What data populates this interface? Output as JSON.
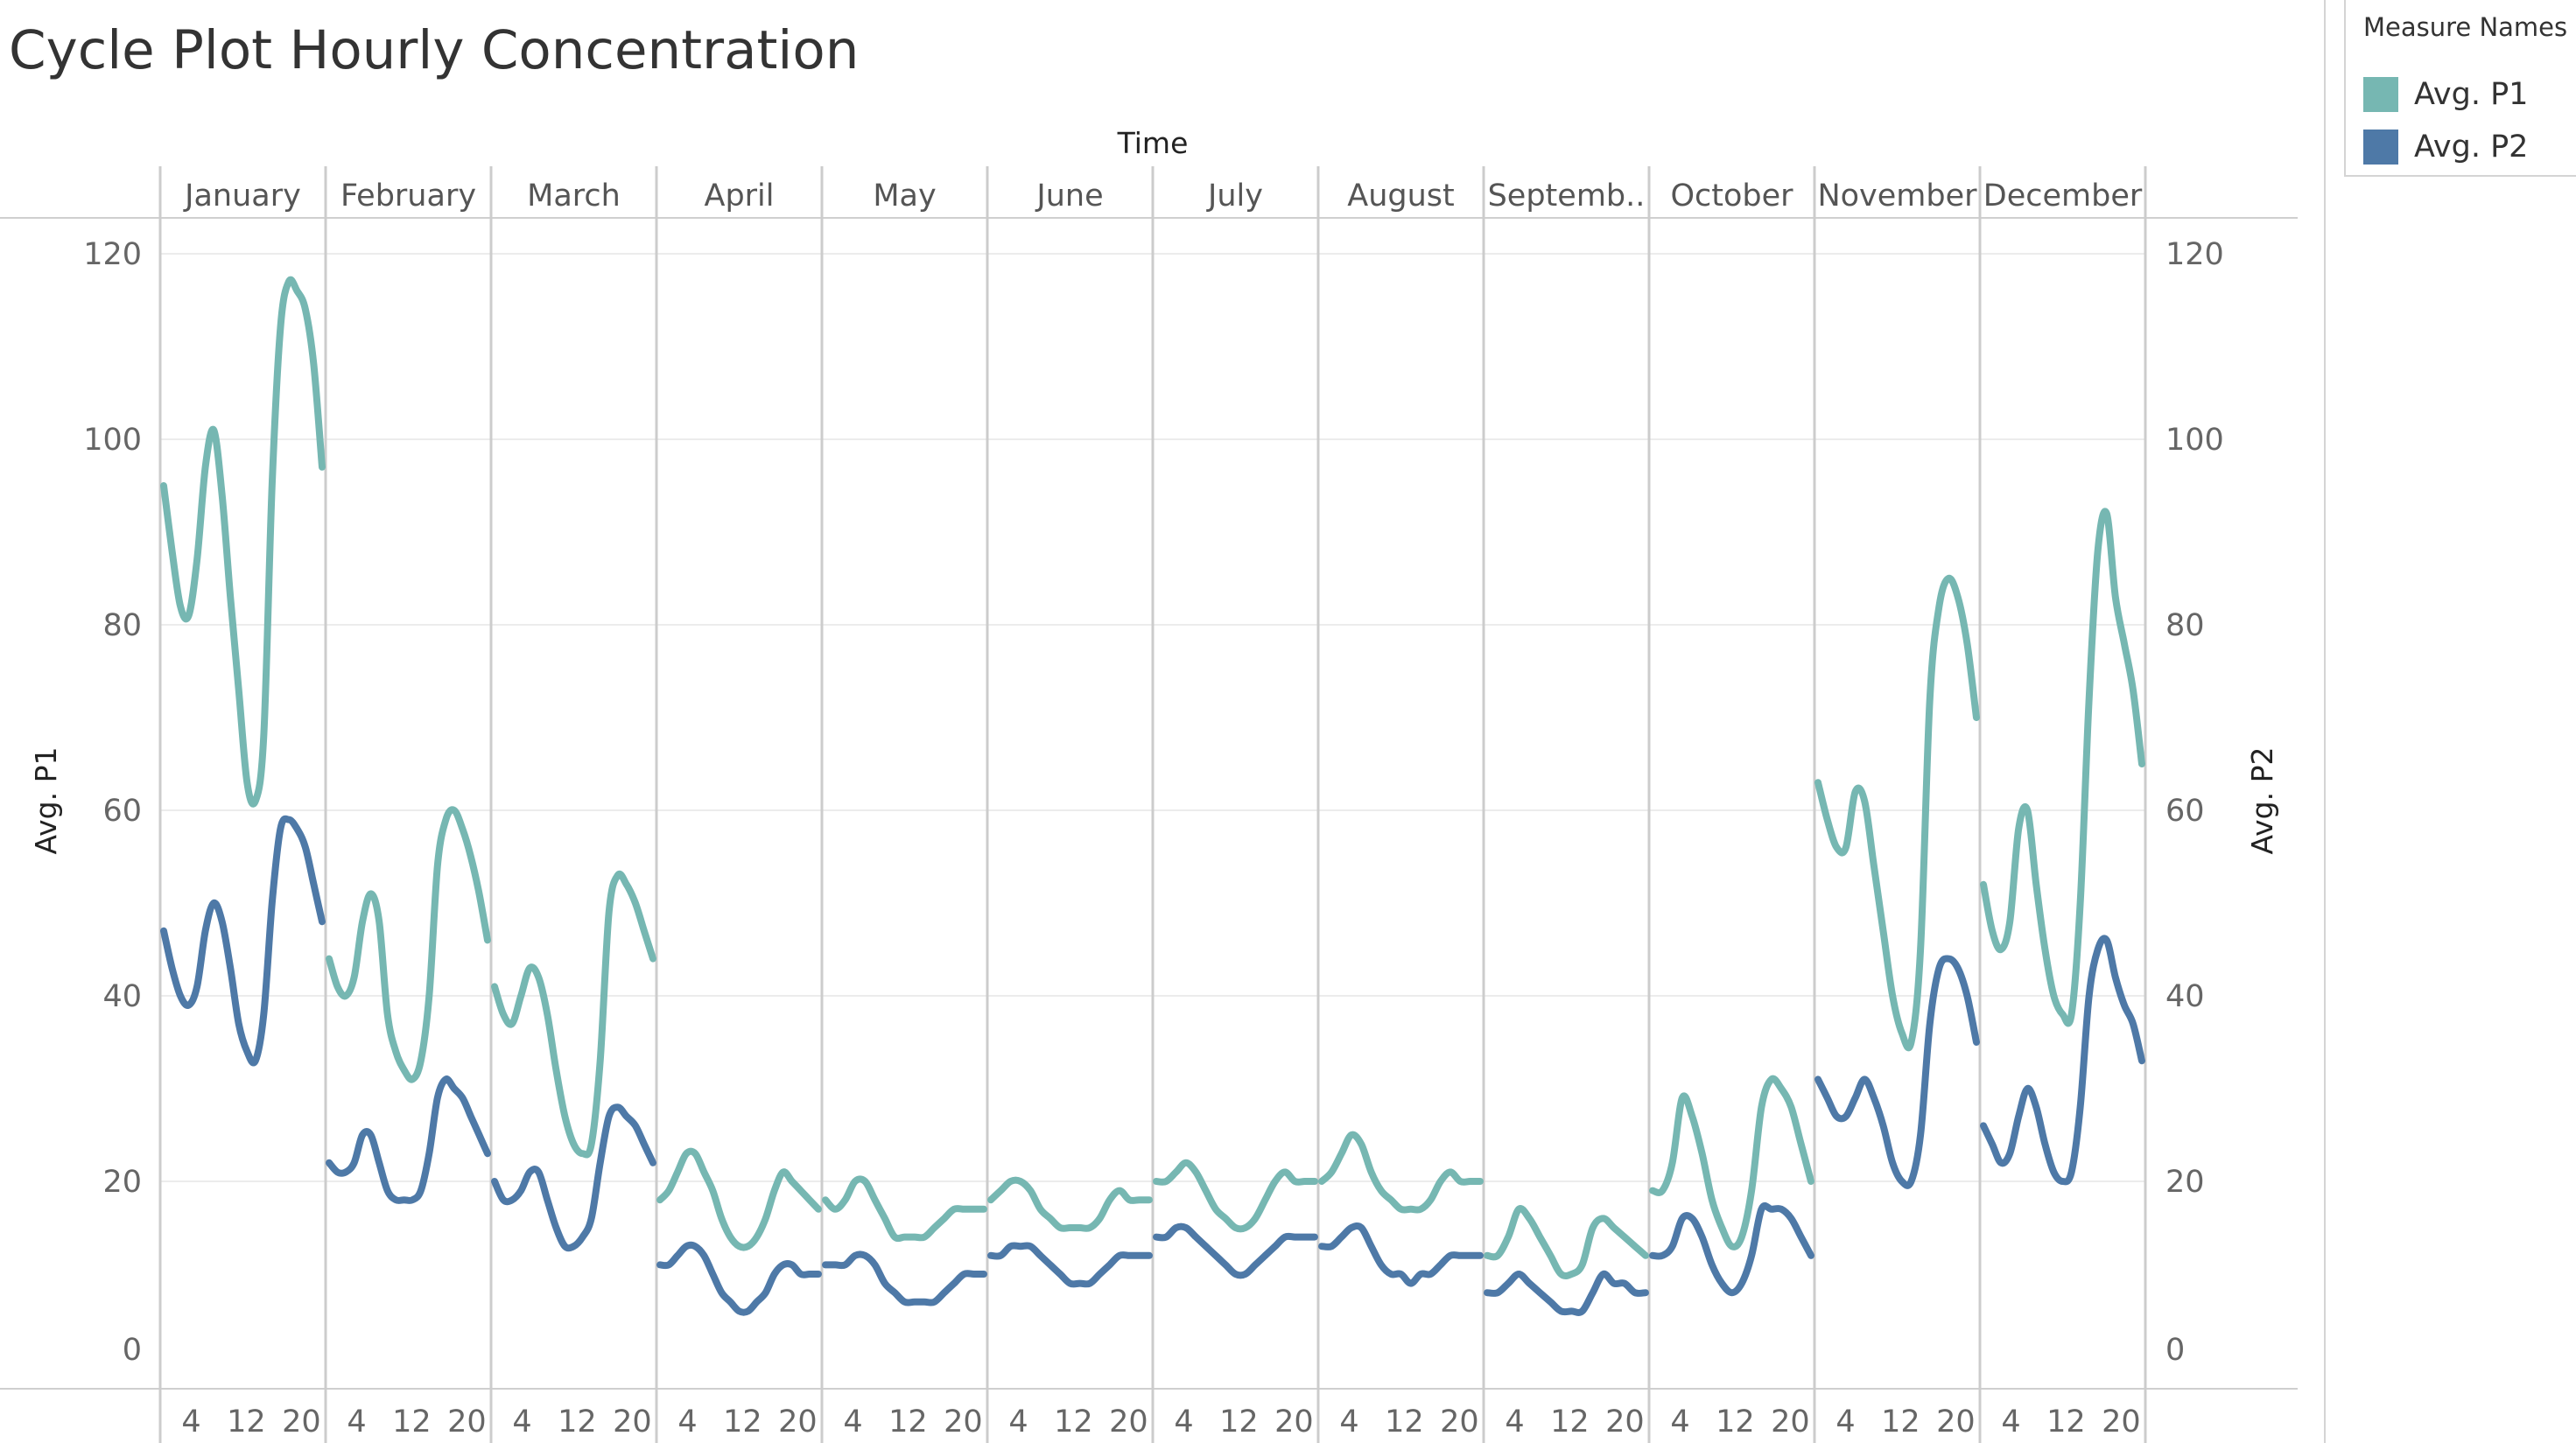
{
  "title": "Cycle Plot Hourly Concentration",
  "legend": {
    "title": "Measure Names",
    "items": [
      {
        "label": "Avg. P1",
        "color": "#76b7b2"
      },
      {
        "label": "Avg. P2",
        "color": "#4e79a7"
      }
    ]
  },
  "chart_data": {
    "type": "line",
    "title": "Cycle Plot Hourly Concentration",
    "column_header": "Time",
    "panels": [
      "January",
      "February",
      "March",
      "April",
      "May",
      "June",
      "July",
      "August",
      "Septemb..",
      "October",
      "November",
      "December"
    ],
    "x_tick_labels": [
      "4",
      "12",
      "20"
    ],
    "x_ticks": [
      4,
      12,
      20
    ],
    "x": [
      0,
      1,
      2,
      3,
      4,
      5,
      6,
      7,
      8,
      9,
      10,
      11,
      12,
      13,
      14,
      15,
      16,
      17,
      18,
      19,
      20,
      21,
      22,
      23
    ],
    "xlim": [
      0,
      23
    ],
    "ylabel_left": "Avg. P1",
    "ylabel_right": "Avg. P2",
    "ylim": [
      0,
      120
    ],
    "y_ticks": [
      0,
      20,
      40,
      60,
      80,
      100,
      120
    ],
    "grid": true,
    "series": [
      {
        "name": "Avg. P1",
        "color": "#76b7b2",
        "values": [
          [
            95,
            88,
            82,
            81,
            87,
            97,
            101,
            94,
            83,
            73,
            63,
            61,
            68,
            95,
            112,
            117,
            116,
            114,
            108,
            97
          ],
          [
            44,
            41,
            40,
            42,
            48,
            51,
            48,
            38,
            34,
            32,
            31,
            33,
            40,
            54,
            59,
            60,
            58,
            55,
            51,
            46
          ],
          [
            41,
            38,
            37,
            40,
            43,
            42,
            38,
            32,
            27,
            24,
            23,
            24,
            33,
            49,
            53,
            52,
            50,
            47,
            44
          ],
          [
            18,
            19,
            21,
            23,
            23,
            21,
            19,
            16,
            14,
            13,
            13,
            14,
            16,
            19,
            21,
            20,
            19,
            18,
            17
          ],
          [
            18,
            17,
            18,
            20,
            20,
            18,
            16,
            14,
            14,
            14,
            14,
            15,
            16,
            17,
            17,
            17,
            17
          ],
          [
            18,
            19,
            20,
            20,
            19,
            17,
            16,
            15,
            15,
            15,
            15,
            16,
            18,
            19,
            18,
            18,
            18
          ],
          [
            20,
            20,
            21,
            22,
            21,
            19,
            17,
            16,
            15,
            15,
            16,
            18,
            20,
            21,
            20,
            20,
            20
          ],
          [
            20,
            21,
            23,
            25,
            24,
            21,
            19,
            18,
            17,
            17,
            17,
            18,
            20,
            21,
            20,
            20,
            20
          ],
          [
            12,
            12,
            14,
            17,
            16,
            14,
            12,
            10,
            10,
            11,
            15,
            16,
            15,
            14,
            13,
            12
          ],
          [
            19,
            19,
            22,
            29,
            27,
            23,
            18,
            15,
            13,
            14,
            19,
            28,
            31,
            30,
            28,
            24,
            20
          ],
          [
            63,
            59,
            56,
            56,
            62,
            61,
            54,
            47,
            40,
            36,
            35,
            45,
            72,
            82,
            85,
            83,
            78,
            70
          ],
          [
            52,
            47,
            45,
            48,
            58,
            60,
            52,
            45,
            40,
            38,
            38,
            50,
            72,
            88,
            92,
            83,
            78,
            73,
            65
          ]
        ]
      },
      {
        "name": "Avg. P2",
        "color": "#4e79a7",
        "values": [
          [
            47,
            43,
            40,
            39,
            41,
            47,
            50,
            48,
            43,
            37,
            34,
            33,
            38,
            50,
            58,
            59,
            58,
            56,
            52,
            48
          ],
          [
            22,
            21,
            21,
            22,
            25,
            25,
            22,
            19,
            18,
            18,
            18,
            19,
            23,
            29,
            31,
            30,
            29,
            27,
            25,
            23
          ],
          [
            20,
            18,
            18,
            19,
            21,
            21,
            18,
            15,
            13,
            13,
            14,
            16,
            22,
            27,
            28,
            27,
            26,
            24,
            22
          ],
          [
            11,
            11,
            12,
            13,
            13,
            12,
            10,
            8,
            7,
            6,
            6,
            7,
            8,
            10,
            11,
            11,
            10,
            10,
            10
          ],
          [
            11,
            11,
            11,
            12,
            12,
            11,
            9,
            8,
            7,
            7,
            7,
            7,
            8,
            9,
            10,
            10,
            10
          ],
          [
            12,
            12,
            13,
            13,
            13,
            12,
            11,
            10,
            9,
            9,
            9,
            10,
            11,
            12,
            12,
            12,
            12
          ],
          [
            14,
            14,
            15,
            15,
            14,
            13,
            12,
            11,
            10,
            10,
            11,
            12,
            13,
            14,
            14,
            14,
            14
          ],
          [
            13,
            13,
            14,
            15,
            15,
            13,
            11,
            10,
            10,
            9,
            10,
            10,
            11,
            12,
            12,
            12,
            12
          ],
          [
            8,
            8,
            9,
            10,
            9,
            8,
            7,
            6,
            6,
            6,
            8,
            10,
            9,
            9,
            8,
            8
          ],
          [
            12,
            12,
            13,
            16,
            16,
            14,
            11,
            9,
            8,
            9,
            12,
            17,
            17,
            17,
            16,
            14,
            12
          ],
          [
            31,
            29,
            27,
            27,
            29,
            31,
            29,
            26,
            22,
            20,
            20,
            25,
            37,
            43,
            44,
            43,
            40,
            35
          ],
          [
            26,
            24,
            22,
            23,
            27,
            30,
            28,
            24,
            21,
            20,
            21,
            28,
            40,
            45,
            46,
            42,
            39,
            37,
            33
          ]
        ]
      }
    ]
  }
}
